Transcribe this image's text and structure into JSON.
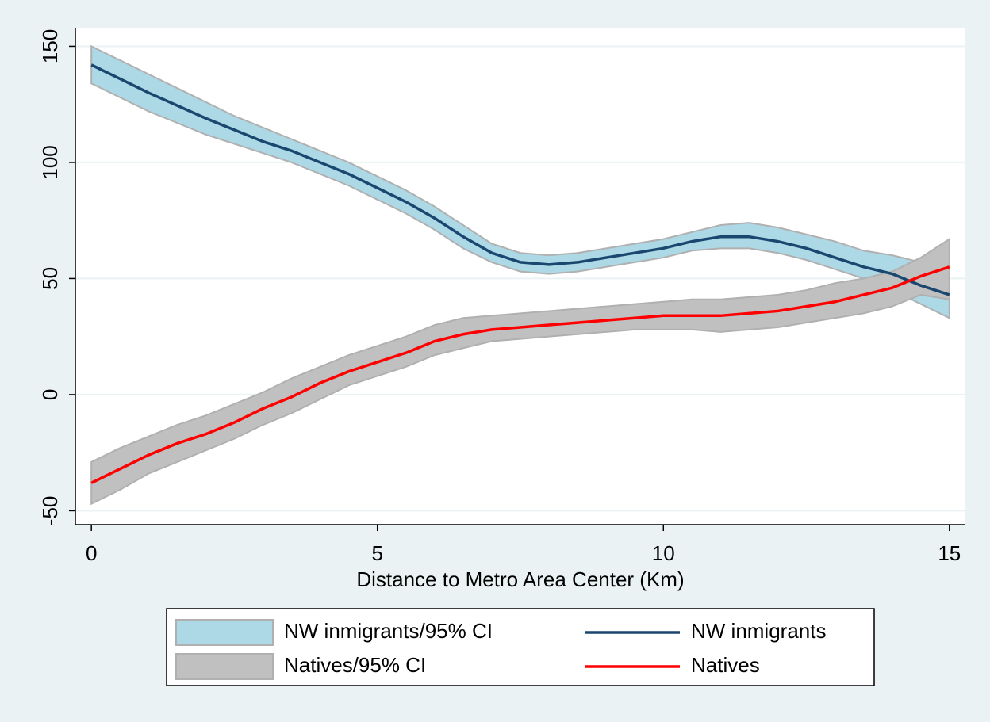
{
  "chart_data": {
    "type": "line",
    "x_label": "Distance to Metro Area Center (Km)",
    "x": [
      0,
      0.5,
      1,
      1.5,
      2,
      2.5,
      3,
      3.5,
      4,
      4.5,
      5,
      5.5,
      6,
      6.5,
      7,
      7.5,
      8,
      8.5,
      9,
      9.5,
      10,
      10.5,
      11,
      11.5,
      12,
      12.5,
      13,
      13.5,
      14,
      14.5,
      15
    ],
    "xlim": [
      -0.28,
      15.28
    ],
    "xticks": [
      0,
      5,
      10,
      15
    ],
    "ylim": [
      -56,
      158
    ],
    "yticks": [
      -50,
      0,
      50,
      100,
      150
    ],
    "grid": true,
    "series": [
      {
        "name": "NW inmigrants/95% CI",
        "type": "band",
        "color": "#add8e6",
        "upper": [
          150,
          144,
          138,
          132,
          126,
          120,
          115,
          110,
          105,
          100,
          94,
          88,
          81,
          73,
          65,
          61,
          60,
          61,
          63,
          65,
          67,
          70,
          73,
          74,
          72,
          69,
          66,
          62,
          60,
          57,
          53
        ],
        "lower": [
          134,
          128,
          122,
          117,
          112,
          108,
          104,
          100,
          95,
          90,
          84,
          78,
          71,
          63,
          57,
          53,
          52,
          53,
          55,
          57,
          59,
          62,
          63,
          63,
          61,
          58,
          54,
          50,
          45,
          39,
          33
        ]
      },
      {
        "name": "Natives/95% CI",
        "type": "band",
        "color": "#c0c0c0",
        "upper": [
          -29,
          -23,
          -18,
          -13,
          -9,
          -4,
          1,
          7,
          12,
          17,
          21,
          25,
          30,
          33,
          34,
          35,
          36,
          37,
          38,
          39,
          40,
          41,
          41,
          42,
          43,
          45,
          48,
          50,
          53,
          59,
          67
        ],
        "lower": [
          -47,
          -41,
          -34,
          -29,
          -24,
          -19,
          -13,
          -8,
          -2,
          4,
          8,
          12,
          17,
          20,
          23,
          24,
          25,
          26,
          27,
          28,
          28,
          28,
          27,
          28,
          29,
          31,
          33,
          35,
          38,
          43,
          41
        ]
      },
      {
        "name": "NW inmigrants",
        "type": "line",
        "color": "#1a476f",
        "values": [
          142,
          136,
          130,
          124.5,
          119,
          114,
          109,
          105,
          100,
          95,
          89,
          83,
          76,
          68,
          61,
          57,
          56,
          57,
          59,
          61,
          63,
          66,
          68,
          68,
          66,
          63,
          59,
          55,
          52,
          47,
          43
        ]
      },
      {
        "name": "Natives",
        "type": "line",
        "color": "#ff0000",
        "values": [
          -38,
          -32,
          -26,
          -21,
          -17,
          -12,
          -6,
          -1,
          5,
          10,
          14,
          18,
          23,
          26,
          28,
          29,
          30,
          31,
          32,
          33,
          34,
          34,
          34,
          35,
          36,
          38,
          40,
          43,
          46,
          51,
          55
        ]
      }
    ]
  }
}
